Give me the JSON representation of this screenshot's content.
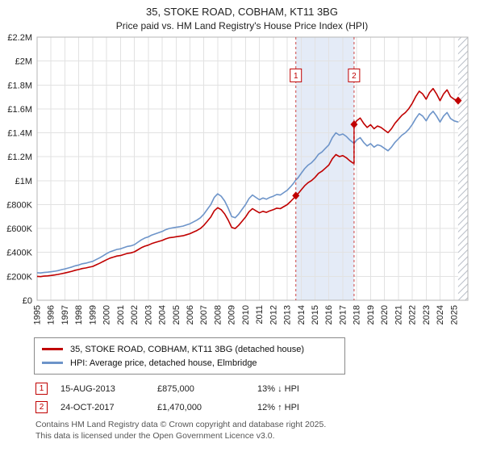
{
  "colors": {
    "accent_red": "#c00000",
    "property_line": "#c00000",
    "hpi_line": "#6d94c9",
    "dashed_line": "#cc4444",
    "sale_band": "#e4ebf7",
    "grid": "#e2e2e2",
    "plot_border": "#b5b5b5",
    "hatch_stroke": "#b9bec7"
  },
  "chart_data": {
    "type": "line",
    "title": "35, STOKE ROAD, COBHAM, KT11 3BG",
    "subtitle": "Price paid vs. HM Land Registry's House Price Index (HPI)",
    "units": "GBP_thousands",
    "grid": true,
    "legend_position": "bottom",
    "xlim": [
      1995,
      2026
    ],
    "ylim": [
      0,
      2200
    ],
    "x_ticks": [
      1995,
      1996,
      1997,
      1998,
      1999,
      2000,
      2001,
      2002,
      2003,
      2004,
      2005,
      2006,
      2007,
      2008,
      2009,
      2010,
      2011,
      2012,
      2013,
      2014,
      2015,
      2016,
      2017,
      2018,
      2019,
      2020,
      2021,
      2022,
      2023,
      2024,
      2025
    ],
    "y_ticks": [
      {
        "v": 0,
        "label": "£0"
      },
      {
        "v": 200,
        "label": "£200K"
      },
      {
        "v": 400,
        "label": "£400K"
      },
      {
        "v": 600,
        "label": "£600K"
      },
      {
        "v": 800,
        "label": "£800K"
      },
      {
        "v": 1000,
        "label": "£1M"
      },
      {
        "v": 1200,
        "label": "£1.2M"
      },
      {
        "v": 1400,
        "label": "£1.4M"
      },
      {
        "v": 1600,
        "label": "£1.6M"
      },
      {
        "v": 1800,
        "label": "£1.8M"
      },
      {
        "v": 2000,
        "label": "£2M"
      },
      {
        "v": 2200,
        "label": "£2.2M"
      }
    ],
    "x": [
      1995,
      1995.25,
      1995.5,
      1995.75,
      1996,
      1996.25,
      1996.5,
      1996.75,
      1997,
      1997.25,
      1997.5,
      1997.75,
      1998,
      1998.25,
      1998.5,
      1998.75,
      1999,
      1999.25,
      1999.5,
      1999.75,
      2000,
      2000.25,
      2000.5,
      2000.75,
      2001,
      2001.25,
      2001.5,
      2001.75,
      2002,
      2002.25,
      2002.5,
      2002.75,
      2003,
      2003.25,
      2003.5,
      2003.75,
      2004,
      2004.25,
      2004.5,
      2004.75,
      2005,
      2005.25,
      2005.5,
      2005.75,
      2006,
      2006.25,
      2006.5,
      2006.75,
      2007,
      2007.25,
      2007.5,
      2007.75,
      2008,
      2008.25,
      2008.5,
      2008.75,
      2009,
      2009.25,
      2009.5,
      2009.75,
      2010,
      2010.25,
      2010.5,
      2010.75,
      2011,
      2011.25,
      2011.5,
      2011.75,
      2012,
      2012.25,
      2012.5,
      2012.75,
      2013,
      2013.25,
      2013.5,
      2013.62,
      2013.75,
      2014,
      2014.25,
      2014.5,
      2014.75,
      2015,
      2015.25,
      2015.5,
      2015.75,
      2016,
      2016.25,
      2016.5,
      2016.75,
      2017,
      2017.25,
      2017.5,
      2017.81,
      2017.81,
      2018,
      2018.25,
      2018.5,
      2018.75,
      2019,
      2019.25,
      2019.5,
      2019.75,
      2020,
      2020.25,
      2020.5,
      2020.75,
      2021,
      2021.25,
      2021.5,
      2021.75,
      2022,
      2022.25,
      2022.5,
      2022.75,
      2023,
      2023.25,
      2023.5,
      2023.75,
      2024,
      2024.25,
      2024.5,
      2024.75,
      2025,
      2025.3
    ],
    "series": [
      {
        "name": "35, STOKE ROAD, COBHAM, KT11 3BG (detached house)",
        "color": "#c00000",
        "values": [
          200,
          198,
          202,
          204,
          207,
          211,
          216,
          222,
          228,
          235,
          242,
          251,
          257,
          265,
          270,
          277,
          283,
          296,
          309,
          324,
          339,
          352,
          361,
          370,
          374,
          383,
          392,
          396,
          405,
          422,
          439,
          452,
          461,
          474,
          483,
          492,
          500,
          513,
          522,
          526,
          531,
          535,
          539,
          548,
          557,
          570,
          583,
          600,
          626,
          661,
          696,
          748,
          774,
          757,
          722,
          670,
          609,
          600,
          626,
          661,
          696,
          740,
          766,
          748,
          731,
          744,
          735,
          748,
          757,
          770,
          766,
          783,
          800,
          827,
          857,
          875,
          887,
          922,
          957,
          983,
          1001,
          1027,
          1061,
          1079,
          1105,
          1131,
          1183,
          1218,
          1201,
          1209,
          1192,
          1166,
          1141,
          1470,
          1501,
          1524,
          1479,
          1445,
          1468,
          1434,
          1457,
          1445,
          1423,
          1401,
          1434,
          1479,
          1513,
          1546,
          1569,
          1602,
          1647,
          1703,
          1748,
          1725,
          1681,
          1737,
          1770,
          1725,
          1669,
          1725,
          1759,
          1703,
          1681,
          1669
        ]
      },
      {
        "name": "HPI: Average price, detached house, Elmbridge",
        "color": "#6d94c9",
        "values": [
          230,
          228,
          232,
          235,
          238,
          242,
          248,
          255,
          262,
          270,
          278,
          288,
          295,
          305,
          310,
          318,
          325,
          340,
          355,
          372,
          390,
          405,
          415,
          425,
          430,
          440,
          450,
          455,
          465,
          485,
          505,
          520,
          530,
          545,
          555,
          565,
          575,
          590,
          600,
          605,
          610,
          615,
          620,
          630,
          640,
          655,
          670,
          690,
          720,
          760,
          800,
          860,
          890,
          870,
          830,
          770,
          700,
          690,
          720,
          760,
          800,
          850,
          880,
          860,
          840,
          855,
          845,
          860,
          870,
          885,
          880,
          900,
          920,
          950,
          985,
          1006,
          1020,
          1060,
          1100,
          1130,
          1150,
          1180,
          1220,
          1240,
          1270,
          1300,
          1360,
          1400,
          1380,
          1390,
          1370,
          1340,
          1312,
          1312,
          1340,
          1360,
          1320,
          1290,
          1310,
          1280,
          1300,
          1290,
          1270,
          1250,
          1280,
          1320,
          1350,
          1380,
          1400,
          1430,
          1470,
          1520,
          1560,
          1540,
          1500,
          1550,
          1580,
          1540,
          1490,
          1540,
          1570,
          1520,
          1500,
          1490
        ]
      }
    ],
    "sale_band": [
      2013.62,
      2017.81
    ],
    "hatch_from": 2025.3,
    "flag_y": 1880,
    "sales": [
      {
        "label": "1",
        "x": 2013.62,
        "y": 875
      },
      {
        "label": "2",
        "x": 2017.81,
        "y": 1470
      }
    ],
    "end_marker": {
      "x": 2025.3,
      "y": 1669
    }
  },
  "annotations": [
    {
      "num": "1",
      "date": "15-AUG-2013",
      "price": "£875,000",
      "hpi_diff": "13% ↓ HPI"
    },
    {
      "num": "2",
      "date": "24-OCT-2017",
      "price": "£1,470,000",
      "hpi_diff": "12% ↑ HPI"
    }
  ],
  "footer": {
    "line1": "Contains HM Land Registry data © Crown copyright and database right 2025.",
    "line2": "This data is licensed under the Open Government Licence v3.0."
  }
}
